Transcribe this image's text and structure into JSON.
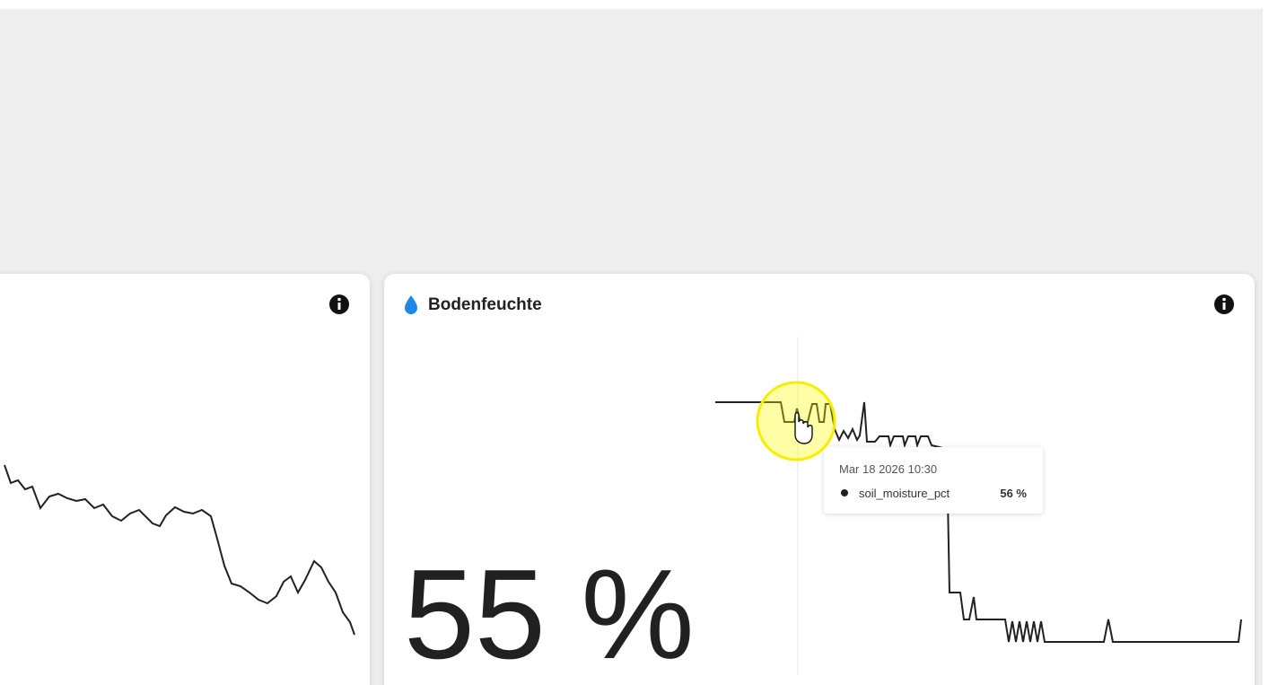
{
  "panel": {
    "title": "Bodenfeuchte",
    "value": "55 %",
    "tooltip": {
      "time": "Mar 18 2026 10:30",
      "series": "soil_moisture_pct",
      "value": "56 %"
    }
  }
}
